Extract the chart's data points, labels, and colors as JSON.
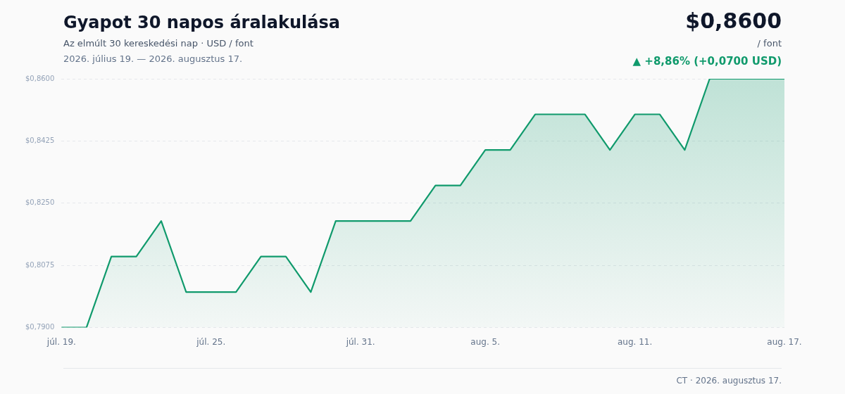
{
  "chart_data": {
    "type": "area",
    "title": "Gyapot 30 napos áralakulása",
    "subtitle": "Az elmúlt 30 kereskedési nap · USD / font",
    "annotations": [
      "2026. július 19. — 2026. augusztus 17.",
      "$0,8600",
      "/ font",
      "▲ +8,86% (+0,0700 USD)",
      "CT · 2026. augusztus 17."
    ],
    "categories": [
      "júl. 19.",
      null,
      null,
      null,
      null,
      null,
      "júl. 25.",
      null,
      null,
      null,
      null,
      null,
      "júl. 31.",
      null,
      null,
      null,
      null,
      "aug. 5.",
      null,
      null,
      null,
      null,
      null,
      "aug. 11.",
      null,
      null,
      null,
      null,
      null,
      "aug. 17."
    ],
    "series": [
      {
        "color": "#109a6c",
        "values": [
          0.79,
          0.79,
          0.81,
          0.81,
          0.82,
          0.8,
          0.8,
          0.8,
          0.81,
          0.81,
          0.8,
          0.82,
          0.82,
          0.82,
          0.82,
          0.83,
          0.83,
          0.84,
          0.84,
          0.85,
          0.85,
          0.85,
          0.84,
          0.85,
          0.85,
          0.84,
          0.86,
          0.86,
          0.86,
          0.86
        ]
      }
    ],
    "ylim": [
      0.79,
      0.86
    ],
    "yticks": [
      {
        "value": 0.79,
        "label": "$0,7900"
      },
      {
        "value": 0.8075,
        "label": "$0,8075"
      },
      {
        "value": 0.825,
        "label": "$0,8250"
      },
      {
        "value": 0.8425,
        "label": "$0,8425"
      },
      {
        "value": 0.86,
        "label": "$0,8600"
      }
    ],
    "grid": "y",
    "legend": false
  }
}
